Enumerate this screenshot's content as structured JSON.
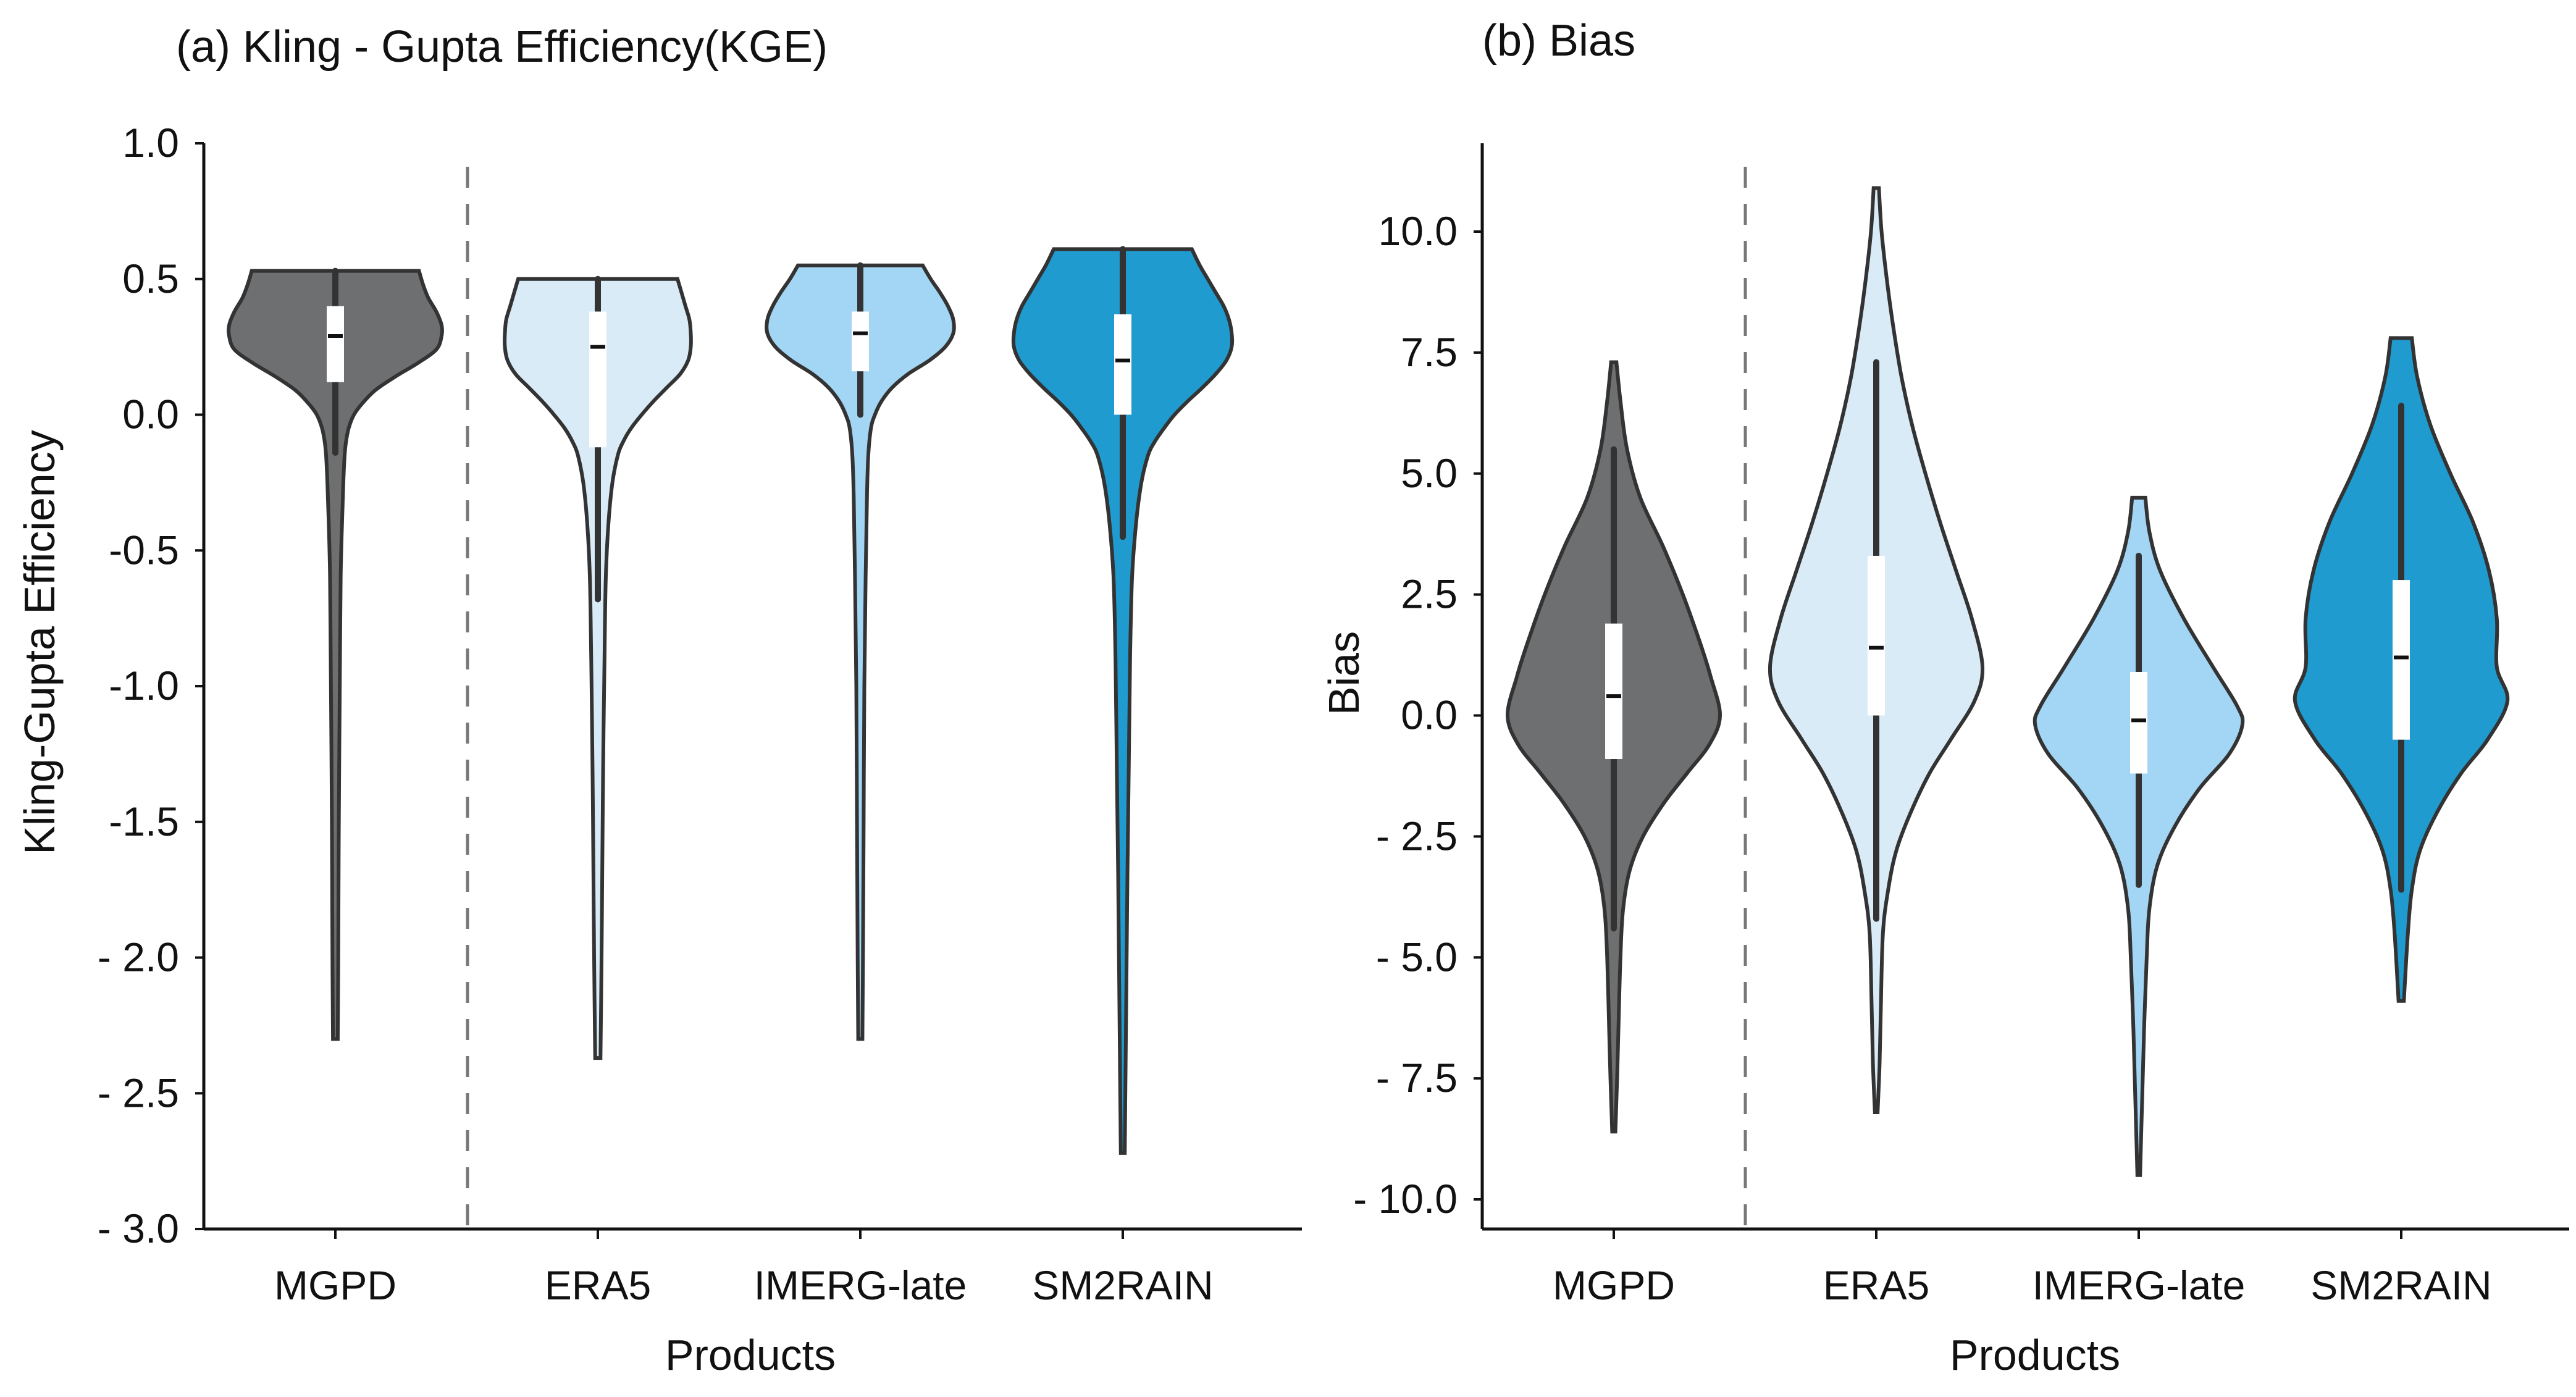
{
  "chart_data": [
    {
      "type": "violin",
      "panel_id": "a",
      "title": "(a) Kling - Gupta Efficiency(KGE)",
      "xlabel": "Products",
      "ylabel": "Kling-Gupta Efficiency",
      "ylim": [
        -3.0,
        1.0
      ],
      "yticks": [
        1.0,
        0.5,
        0.0,
        -0.5,
        -1.0,
        -1.5,
        -2.0,
        -2.5,
        -3.0
      ],
      "ytick_labels": [
        "1.0",
        "0.5",
        "0.0",
        "-0.5",
        "-1.0",
        "-1.5",
        "- 2.0",
        "- 2.5",
        "- 3.0"
      ],
      "categories": [
        "MGPD",
        "ERA5",
        "IMERG-late",
        "SM2RAIN"
      ],
      "divider_after_category": 0,
      "series": [
        {
          "name": "MGPD",
          "color": "#6d6f70",
          "min": -2.3,
          "max": 0.53,
          "q1": 0.12,
          "median": 0.29,
          "q3": 0.4,
          "whisker_low": -0.14,
          "whisker_high": 0.53,
          "density": [
            [
              0.53,
              0.63
            ],
            [
              0.48,
              0.66
            ],
            [
              0.43,
              0.7
            ],
            [
              0.38,
              0.76
            ],
            [
              0.33,
              0.8
            ],
            [
              0.29,
              0.8
            ],
            [
              0.24,
              0.76
            ],
            [
              0.19,
              0.62
            ],
            [
              0.14,
              0.45
            ],
            [
              0.09,
              0.3
            ],
            [
              0.04,
              0.2
            ],
            [
              0.0,
              0.14
            ],
            [
              -0.05,
              0.1
            ],
            [
              -0.1,
              0.08
            ],
            [
              -0.15,
              0.07
            ],
            [
              -0.25,
              0.06
            ],
            [
              -0.4,
              0.05
            ],
            [
              -0.6,
              0.04
            ],
            [
              -0.9,
              0.035
            ],
            [
              -1.2,
              0.03
            ],
            [
              -1.6,
              0.025
            ],
            [
              -2.0,
              0.022
            ],
            [
              -2.3,
              0.018
            ]
          ]
        },
        {
          "name": "ERA5",
          "color": "#daebf8",
          "min": -2.37,
          "max": 0.5,
          "q1": -0.12,
          "median": 0.25,
          "q3": 0.38,
          "whisker_low": -0.68,
          "whisker_high": 0.5,
          "density": [
            [
              0.5,
              0.6
            ],
            [
              0.45,
              0.63
            ],
            [
              0.4,
              0.66
            ],
            [
              0.35,
              0.69
            ],
            [
              0.3,
              0.7
            ],
            [
              0.25,
              0.7
            ],
            [
              0.2,
              0.68
            ],
            [
              0.15,
              0.62
            ],
            [
              0.1,
              0.52
            ],
            [
              0.05,
              0.42
            ],
            [
              0.0,
              0.33
            ],
            [
              -0.05,
              0.25
            ],
            [
              -0.1,
              0.19
            ],
            [
              -0.15,
              0.15
            ],
            [
              -0.25,
              0.11
            ],
            [
              -0.4,
              0.08
            ],
            [
              -0.6,
              0.06
            ],
            [
              -0.9,
              0.05
            ],
            [
              -1.3,
              0.04
            ],
            [
              -1.7,
              0.033
            ],
            [
              -2.0,
              0.028
            ],
            [
              -2.37,
              0.02
            ]
          ]
        },
        {
          "name": "IMERG-late",
          "color": "#a3d6f4",
          "min": -2.3,
          "max": 0.55,
          "q1": 0.16,
          "median": 0.3,
          "q3": 0.38,
          "whisker_low": 0.0,
          "whisker_high": 0.55,
          "density": [
            [
              0.55,
              0.47
            ],
            [
              0.5,
              0.53
            ],
            [
              0.45,
              0.6
            ],
            [
              0.4,
              0.66
            ],
            [
              0.35,
              0.7
            ],
            [
              0.3,
              0.7
            ],
            [
              0.25,
              0.64
            ],
            [
              0.2,
              0.52
            ],
            [
              0.15,
              0.36
            ],
            [
              0.1,
              0.24
            ],
            [
              0.05,
              0.16
            ],
            [
              0.0,
              0.11
            ],
            [
              -0.05,
              0.08
            ],
            [
              -0.15,
              0.06
            ],
            [
              -0.3,
              0.05
            ],
            [
              -0.6,
              0.04
            ],
            [
              -1.0,
              0.03
            ],
            [
              -1.5,
              0.025
            ],
            [
              -2.0,
              0.02
            ],
            [
              -2.3,
              0.016
            ]
          ]
        },
        {
          "name": "SM2RAIN",
          "color": "#1f9bd0",
          "min": -2.72,
          "max": 0.61,
          "q1": 0.0,
          "median": 0.2,
          "q3": 0.37,
          "whisker_low": -0.45,
          "whisker_high": 0.61,
          "density": [
            [
              0.61,
              0.52
            ],
            [
              0.55,
              0.58
            ],
            [
              0.5,
              0.64
            ],
            [
              0.45,
              0.7
            ],
            [
              0.4,
              0.76
            ],
            [
              0.35,
              0.8
            ],
            [
              0.3,
              0.82
            ],
            [
              0.25,
              0.82
            ],
            [
              0.2,
              0.78
            ],
            [
              0.15,
              0.7
            ],
            [
              0.1,
              0.6
            ],
            [
              0.05,
              0.49
            ],
            [
              0.0,
              0.39
            ],
            [
              -0.05,
              0.31
            ],
            [
              -0.1,
              0.24
            ],
            [
              -0.15,
              0.19
            ],
            [
              -0.25,
              0.14
            ],
            [
              -0.4,
              0.1
            ],
            [
              -0.6,
              0.07
            ],
            [
              -0.9,
              0.055
            ],
            [
              -1.3,
              0.045
            ],
            [
              -1.7,
              0.035
            ],
            [
              -2.2,
              0.025
            ],
            [
              -2.72,
              0.015
            ]
          ]
        }
      ]
    },
    {
      "type": "violin",
      "panel_id": "b",
      "title": "(b) Bias",
      "xlabel": "Products",
      "ylabel": "Bias",
      "ylim": [
        -10.5,
        12.0
      ],
      "yticks": [
        10.0,
        7.5,
        5.0,
        2.5,
        0.0,
        -2.5,
        -5.0,
        -7.5,
        -10.0
      ],
      "ytick_labels": [
        "10.0",
        "7.5",
        "5.0",
        "2.5",
        "0.0",
        "- 2.5",
        "- 5.0",
        "- 7.5",
        "- 10.0"
      ],
      "categories": [
        "MGPD",
        "ERA5",
        "IMERG-late",
        "SM2RAIN"
      ],
      "divider_after_category": 0,
      "series": [
        {
          "name": "MGPD",
          "color": "#6d6f70",
          "min": -8.6,
          "max": 7.3,
          "q1": -0.9,
          "median": 0.4,
          "q3": 1.9,
          "whisker_low": -4.4,
          "whisker_high": 5.5,
          "density": [
            [
              7.3,
              0.02
            ],
            [
              6.5,
              0.05
            ],
            [
              5.5,
              0.1
            ],
            [
              4.5,
              0.2
            ],
            [
              3.5,
              0.37
            ],
            [
              2.5,
              0.52
            ],
            [
              1.5,
              0.65
            ],
            [
              0.8,
              0.73
            ],
            [
              0.0,
              0.8
            ],
            [
              -0.6,
              0.72
            ],
            [
              -1.2,
              0.55
            ],
            [
              -1.8,
              0.38
            ],
            [
              -2.5,
              0.22
            ],
            [
              -3.2,
              0.12
            ],
            [
              -4.0,
              0.07
            ],
            [
              -5.0,
              0.05
            ],
            [
              -6.5,
              0.035
            ],
            [
              -7.5,
              0.025
            ],
            [
              -8.6,
              0.012
            ]
          ]
        },
        {
          "name": "ERA5",
          "color": "#daebf8",
          "min": -8.2,
          "max": 10.9,
          "q1": 0.0,
          "median": 1.4,
          "q3": 3.3,
          "whisker_low": -4.2,
          "whisker_high": 7.3,
          "density": [
            [
              10.9,
              0.02
            ],
            [
              10.0,
              0.04
            ],
            [
              9.0,
              0.08
            ],
            [
              8.0,
              0.13
            ],
            [
              7.0,
              0.19
            ],
            [
              6.0,
              0.27
            ],
            [
              5.0,
              0.37
            ],
            [
              4.0,
              0.48
            ],
            [
              3.0,
              0.6
            ],
            [
              2.0,
              0.72
            ],
            [
              1.0,
              0.8
            ],
            [
              0.3,
              0.74
            ],
            [
              -0.5,
              0.56
            ],
            [
              -1.2,
              0.4
            ],
            [
              -2.0,
              0.26
            ],
            [
              -2.8,
              0.15
            ],
            [
              -3.6,
              0.09
            ],
            [
              -4.5,
              0.05
            ],
            [
              -6.0,
              0.035
            ],
            [
              -7.2,
              0.025
            ],
            [
              -8.2,
              0.01
            ]
          ]
        },
        {
          "name": "IMERG-late",
          "color": "#a3d6f4",
          "min": -9.5,
          "max": 4.5,
          "q1": -1.2,
          "median": -0.1,
          "q3": 0.9,
          "whisker_low": -3.5,
          "whisker_high": 3.3,
          "density": [
            [
              4.5,
              0.05
            ],
            [
              3.8,
              0.08
            ],
            [
              3.0,
              0.16
            ],
            [
              2.0,
              0.34
            ],
            [
              1.0,
              0.56
            ],
            [
              0.2,
              0.74
            ],
            [
              -0.2,
              0.78
            ],
            [
              -0.8,
              0.68
            ],
            [
              -1.5,
              0.46
            ],
            [
              -2.3,
              0.27
            ],
            [
              -3.1,
              0.14
            ],
            [
              -4.0,
              0.08
            ],
            [
              -5.0,
              0.06
            ],
            [
              -6.5,
              0.04
            ],
            [
              -8.0,
              0.025
            ],
            [
              -9.5,
              0.01
            ]
          ]
        },
        {
          "name": "SM2RAIN",
          "color": "#1f9bd0",
          "min": -5.9,
          "max": 7.8,
          "q1": -0.5,
          "median": 1.2,
          "q3": 2.8,
          "whisker_low": -3.6,
          "whisker_high": 6.4,
          "density": [
            [
              7.8,
              0.08
            ],
            [
              7.0,
              0.12
            ],
            [
              6.0,
              0.22
            ],
            [
              5.0,
              0.37
            ],
            [
              4.0,
              0.54
            ],
            [
              3.0,
              0.66
            ],
            [
              2.0,
              0.72
            ],
            [
              1.0,
              0.72
            ],
            [
              0.3,
              0.8
            ],
            [
              -0.5,
              0.65
            ],
            [
              -1.2,
              0.45
            ],
            [
              -2.0,
              0.27
            ],
            [
              -2.8,
              0.14
            ],
            [
              -3.6,
              0.08
            ],
            [
              -4.5,
              0.05
            ],
            [
              -5.9,
              0.02
            ]
          ]
        }
      ]
    }
  ]
}
